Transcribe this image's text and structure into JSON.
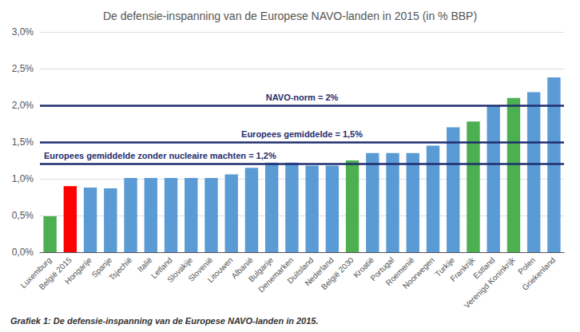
{
  "chart_data": {
    "type": "bar",
    "title": "De defensie-inspanning van de Europese NAVO-landen in 2015 (in % BBP)",
    "caption": "Grafiek 1: De defensie-inspanning van de Europese NAVO-landen in 2015.",
    "categories": [
      "Luxemburg",
      "België 2015",
      "Hongarije",
      "Spanje",
      "Tsjechië",
      "Italië",
      "Letland",
      "Slovakije",
      "Slovenië",
      "Litouwen",
      "Albanië",
      "Bulgarije",
      "Denemarken",
      "Duitsland",
      "Nederland",
      "België 2030",
      "Kroatië",
      "Portugal",
      "Roemenië",
      "Noorwegen",
      "Turkije",
      "Frankrijk",
      "Estland",
      "Verenigd Koninkrijk",
      "Polen",
      "Griekenland"
    ],
    "values": [
      0.49,
      0.9,
      0.88,
      0.87,
      1.01,
      1.01,
      1.01,
      1.01,
      1.01,
      1.06,
      1.15,
      1.22,
      1.22,
      1.18,
      1.18,
      1.25,
      1.35,
      1.35,
      1.35,
      1.45,
      1.7,
      1.78,
      2.0,
      2.1,
      2.18,
      2.38
    ],
    "colors": [
      "#4CAF50",
      "#FF0000",
      "#5B9BD5",
      "#5B9BD5",
      "#5B9BD5",
      "#5B9BD5",
      "#5B9BD5",
      "#5B9BD5",
      "#5B9BD5",
      "#5B9BD5",
      "#5B9BD5",
      "#5B9BD5",
      "#5B9BD5",
      "#5B9BD5",
      "#5B9BD5",
      "#4CAF50",
      "#5B9BD5",
      "#5B9BD5",
      "#5B9BD5",
      "#5B9BD5",
      "#5B9BD5",
      "#4CAF50",
      "#5B9BD5",
      "#4CAF50",
      "#5B9BD5",
      "#5B9BD5"
    ],
    "hlines": [
      {
        "y": 2.0,
        "color": "#1F2D6E",
        "label": "NAVO-norm = 2%"
      },
      {
        "y": 1.5,
        "color": "#1F2D6E",
        "label": "Europees gemiddelde = 1,5%"
      },
      {
        "y": 1.2,
        "color": "#1F2D6E",
        "label": "Europees gemiddelde zonder nucleaire machten = 1,2%"
      }
    ],
    "ylim": [
      0,
      3.0
    ],
    "yticks": [
      {
        "value": 0.0,
        "label": "0,0%"
      },
      {
        "value": 0.5,
        "label": "0,5%"
      },
      {
        "value": 1.0,
        "label": "1,0%"
      },
      {
        "value": 1.5,
        "label": "1,5%"
      },
      {
        "value": 2.0,
        "label": "2,0%"
      },
      {
        "value": 2.5,
        "label": "2,5%"
      },
      {
        "value": 3.0,
        "label": "3,0%"
      }
    ],
    "grid": true
  }
}
